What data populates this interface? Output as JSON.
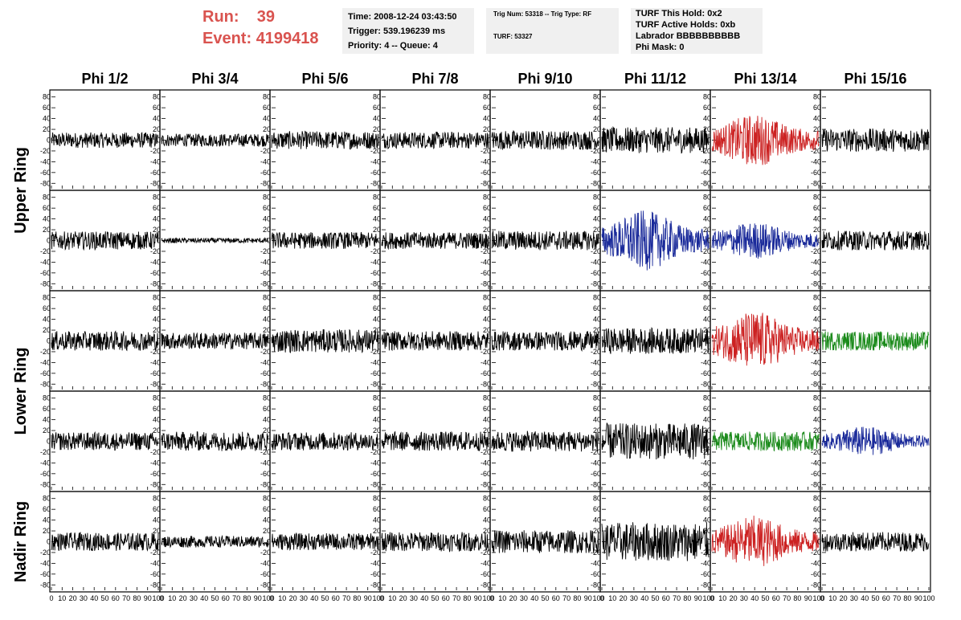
{
  "header": {
    "run_label": "Run:",
    "run_value": "39",
    "event_label": "Event:",
    "event_value": "4199418",
    "time_line": "Time: 2008-12-24 03:43:50",
    "trigger_line": "Trigger: 539.196239 ms",
    "priority_line": "Priority: 4 -- Queue: 4",
    "trig_num_line": "Trig Num: 53318 -- Trig Type: RF",
    "turf_line": "TURF: 53327",
    "turf_hold_line": "TURF This Hold: 0x2",
    "turf_active_line": "TURF Active Holds: 0xb",
    "labrador_line": "Labrador BBBBBBBBBB",
    "phimask_line": "Phi Mask: 0"
  },
  "chart_data": {
    "type": "line",
    "columns": [
      "Phi 1/2",
      "Phi 3/4",
      "Phi 5/6",
      "Phi 7/8",
      "Phi 9/10",
      "Phi 11/12",
      "Phi 13/14",
      "Phi 15/16"
    ],
    "ring_labels": [
      "Upper Ring",
      "Lower Ring",
      "Nadir Ring"
    ],
    "xlim": [
      0,
      100
    ],
    "ylim": [
      -90,
      90
    ],
    "x_tick_labels": [
      "0",
      "10",
      "20",
      "30",
      "40",
      "50",
      "60",
      "70",
      "80",
      "90",
      "100"
    ],
    "y_tick_labels": [
      "-80",
      "-60",
      "-40",
      "-20",
      "0",
      "20",
      "40",
      "60",
      "80"
    ],
    "series_colors": {
      "default": "#000000",
      "red": "#cc2222",
      "blue": "#1a2a9a",
      "green": "#1a8a1a"
    },
    "panels": [
      [
        {
          "color": "default",
          "amplitude": 12
        },
        {
          "color": "default",
          "amplitude": 10
        },
        {
          "color": "default",
          "amplitude": 14
        },
        {
          "color": "default",
          "amplitude": 13
        },
        {
          "color": "default",
          "amplitude": 15
        },
        {
          "color": "default",
          "amplitude": 20
        },
        {
          "color": "red",
          "amplitude": 28
        },
        {
          "color": "default",
          "amplitude": 18
        }
      ],
      [
        {
          "color": "default",
          "amplitude": 14
        },
        {
          "color": "default",
          "amplitude": 4
        },
        {
          "color": "default",
          "amplitude": 13
        },
        {
          "color": "default",
          "amplitude": 13
        },
        {
          "color": "default",
          "amplitude": 15
        },
        {
          "color": "blue",
          "amplitude": 32
        },
        {
          "color": "blue",
          "amplitude": 20
        },
        {
          "color": "default",
          "amplitude": 15
        }
      ],
      [
        {
          "color": "default",
          "amplitude": 15
        },
        {
          "color": "default",
          "amplitude": 13
        },
        {
          "color": "default",
          "amplitude": 18
        },
        {
          "color": "default",
          "amplitude": 15
        },
        {
          "color": "default",
          "amplitude": 15
        },
        {
          "color": "default",
          "amplitude": 20
        },
        {
          "color": "red",
          "amplitude": 32
        },
        {
          "color": "green",
          "amplitude": 15
        }
      ],
      [
        {
          "color": "default",
          "amplitude": 14
        },
        {
          "color": "default",
          "amplitude": 15
        },
        {
          "color": "default",
          "amplitude": 14
        },
        {
          "color": "default",
          "amplitude": 15
        },
        {
          "color": "default",
          "amplitude": 16
        },
        {
          "color": "default",
          "amplitude": 28
        },
        {
          "color": "green",
          "amplitude": 15
        },
        {
          "color": "blue",
          "amplitude": 16
        }
      ],
      [
        {
          "color": "default",
          "amplitude": 14
        },
        {
          "color": "default",
          "amplitude": 9
        },
        {
          "color": "default",
          "amplitude": 13
        },
        {
          "color": "default",
          "amplitude": 15
        },
        {
          "color": "default",
          "amplitude": 18
        },
        {
          "color": "default",
          "amplitude": 30
        },
        {
          "color": "red",
          "amplitude": 28
        },
        {
          "color": "default",
          "amplitude": 15
        }
      ]
    ]
  }
}
